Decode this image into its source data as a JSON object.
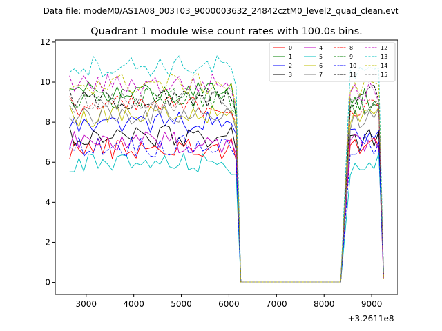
{
  "figure": {
    "file_label": "Data file: modeM0/AS1A08_003T03_9000003632_24842cztM0_level2_quad_clean.evt",
    "title": "Quadrant 1 module wise count rates with 100.0s bins.",
    "offset_label": "+3.2611e8"
  },
  "chart_data": {
    "type": "line",
    "title": "Quadrant 1 module wise count rates with 100.0s bins.",
    "xlabel": "",
    "ylabel": "",
    "x_offset": 326110000,
    "xlim": [
      2350,
      9550
    ],
    "ylim": [
      -0.6,
      12.1
    ],
    "xticks": [
      3000,
      4000,
      5000,
      6000,
      7000,
      8000,
      9000
    ],
    "xtick_labels": [
      "3000",
      "4000",
      "5000",
      "6000",
      "7000",
      "8000",
      "9000"
    ],
    "yticks": [
      0,
      2,
      4,
      6,
      8,
      10,
      12
    ],
    "ytick_labels": [
      "0",
      "2",
      "4",
      "6",
      "8",
      "10",
      "12"
    ],
    "grid": false,
    "legend_position": "top-right",
    "bin_seconds": 100,
    "segments": [
      {
        "start": 2650,
        "end": 6150
      },
      {
        "start": 8350,
        "end": 9250
      }
    ],
    "gap_level": 0.02,
    "series": [
      {
        "name": "0",
        "color": "#ff0000",
        "dashed": false,
        "mean": 6.7,
        "end_value": 6.1,
        "seg2_mean": 7.0
      },
      {
        "name": "1",
        "color": "#008000",
        "dashed": false,
        "mean": 9.5,
        "end_value": 8.2,
        "seg2_mean": 9.2
      },
      {
        "name": "2",
        "color": "#0000ff",
        "dashed": false,
        "mean": 8.0,
        "end_value": 7.4,
        "seg2_mean": 7.3
      },
      {
        "name": "3",
        "color": "#000000",
        "dashed": false,
        "mean": 7.3,
        "end_value": 6.6,
        "seg2_mean": 7.1
      },
      {
        "name": "4",
        "color": "#bf00bf",
        "dashed": false,
        "mean": 7.0,
        "end_value": 6.4,
        "seg2_mean": 6.9
      },
      {
        "name": "5",
        "color": "#00bfbf",
        "dashed": false,
        "mean": 5.9,
        "end_value": 5.4,
        "seg2_mean": 5.9
      },
      {
        "name": "6",
        "color": "#bfbf00",
        "dashed": false,
        "mean": 8.3,
        "end_value": 7.8,
        "seg2_mean": 8.4
      },
      {
        "name": "7",
        "color": "#808080",
        "dashed": false,
        "mean": 8.4,
        "end_value": 7.6,
        "seg2_mean": 8.2
      },
      {
        "name": "8",
        "color": "#ff0000",
        "dashed": true,
        "mean": 8.8,
        "end_value": 8.0,
        "seg2_mean": 8.6
      },
      {
        "name": "9",
        "color": "#008000",
        "dashed": true,
        "mean": 9.2,
        "end_value": 8.4,
        "seg2_mean": 9.0
      },
      {
        "name": "10",
        "color": "#0000ff",
        "dashed": true,
        "mean": 6.8,
        "end_value": 6.2,
        "seg2_mean": 6.8
      },
      {
        "name": "11",
        "color": "#000000",
        "dashed": true,
        "mean": 9.1,
        "end_value": 8.5,
        "seg2_mean": 9.3
      },
      {
        "name": "12",
        "color": "#bf00bf",
        "dashed": true,
        "mean": 9.9,
        "end_value": 8.8,
        "seg2_mean": 9.5
      },
      {
        "name": "13",
        "color": "#00bfbf",
        "dashed": true,
        "mean": 10.8,
        "end_value": 9.8,
        "seg2_mean": 10.3
      },
      {
        "name": "14",
        "color": "#bfbf00",
        "dashed": true,
        "mean": 9.9,
        "end_value": 8.8,
        "seg2_mean": 9.6
      },
      {
        "name": "15",
        "color": "#808080",
        "dashed": true,
        "mean": 9.0,
        "end_value": 8.3,
        "seg2_mean": 8.9
      }
    ]
  }
}
